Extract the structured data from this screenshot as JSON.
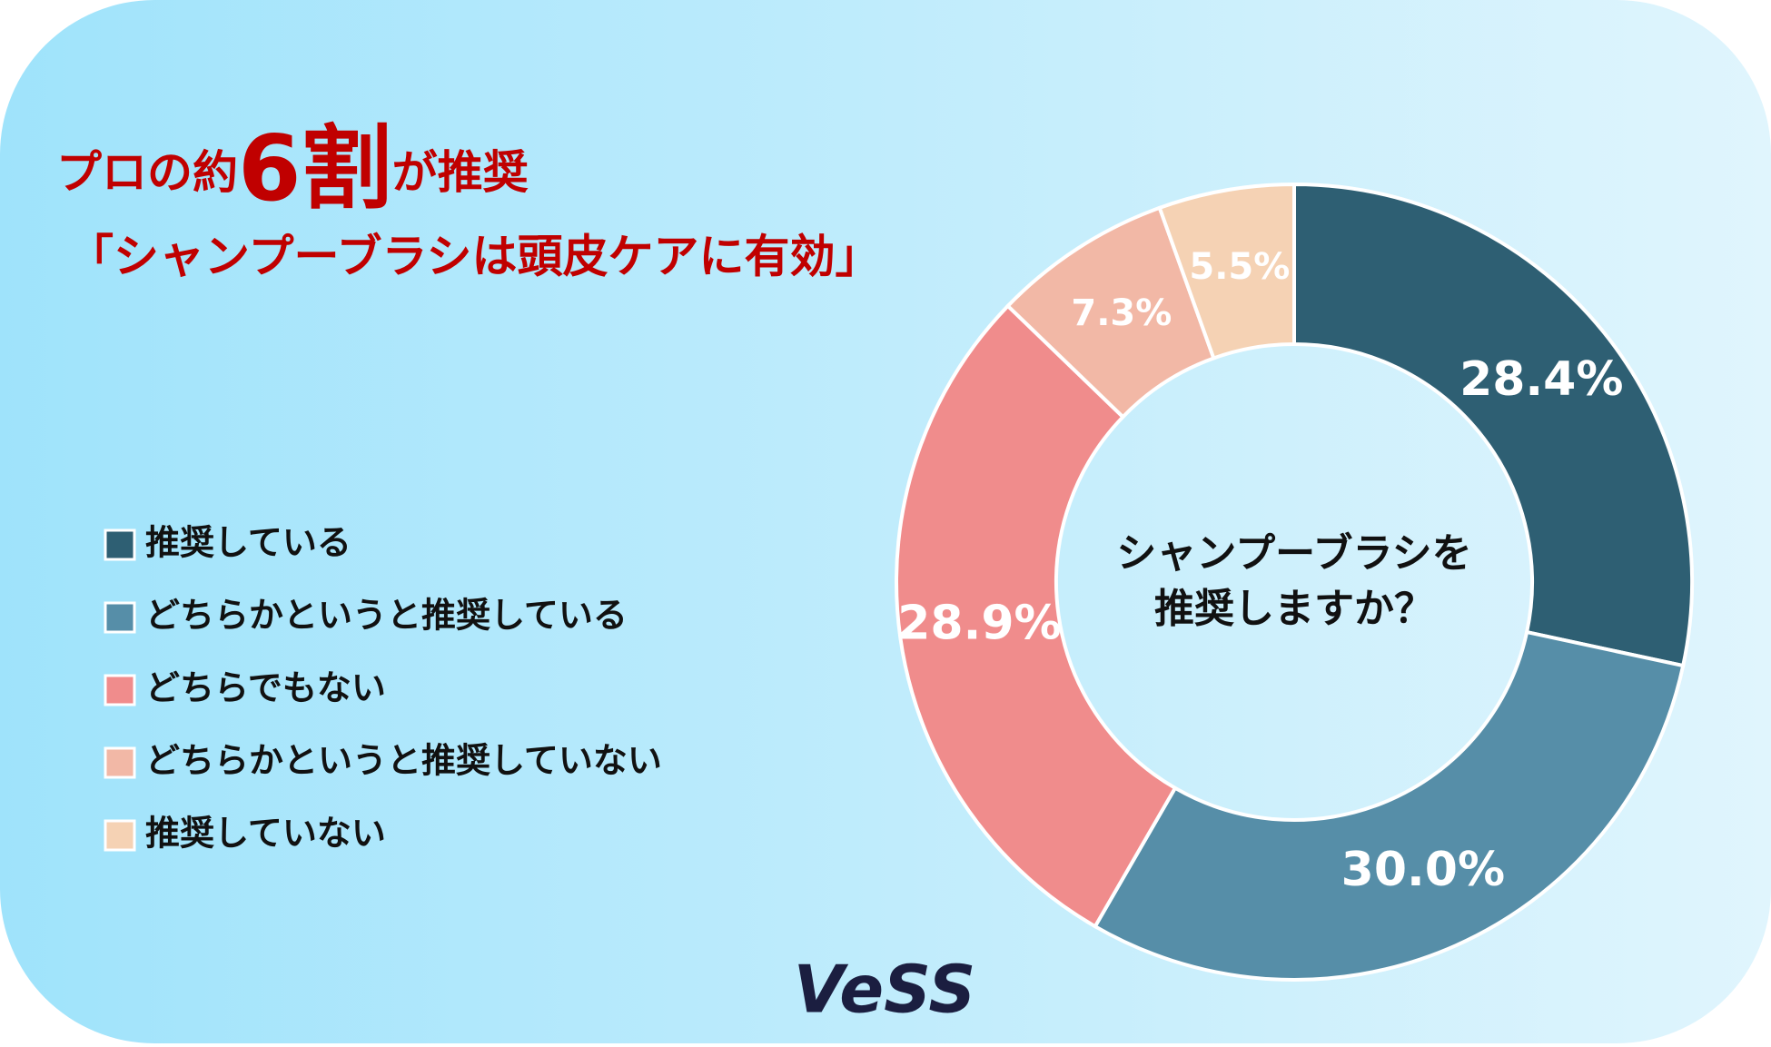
{
  "chart_data": {
    "type": "donut",
    "title_parts": [
      "プロの約",
      "6割",
      "が推奨"
    ],
    "subtitle": "「シャンプーブラシは頭皮ケアに有効」",
    "center_text": [
      "シャンプーブラシを",
      "推奨しますか？"
    ],
    "categories": [
      "推奨している",
      "どちらかというと推奨している",
      "どちらでもない",
      "どちらかというと推奨していない",
      "推奨していない"
    ],
    "values": [
      28.4,
      30.0,
      28.9,
      7.3,
      5.5
    ],
    "value_labels": [
      "28.4%",
      "30.0%",
      "28.9%",
      "7.3%",
      "5.5%"
    ],
    "colors": [
      "#2e5f73",
      "#568ea8",
      "#f08c8c",
      "#f2b8a6",
      "#f5d2b4"
    ],
    "brand": "VeSS"
  }
}
